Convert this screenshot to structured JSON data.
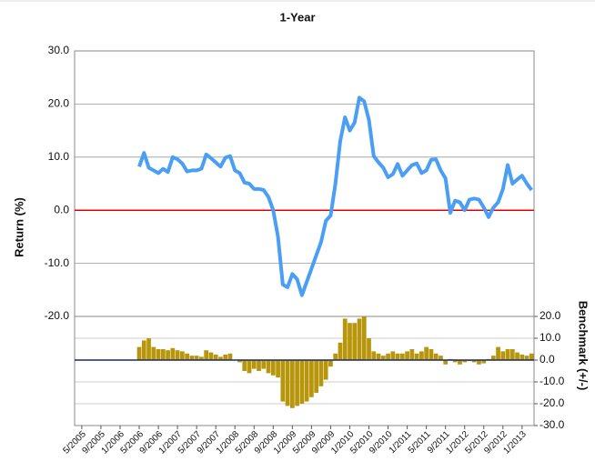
{
  "chart_data": {
    "type": "line-bar",
    "title": "1-Year",
    "ylabel": "Return (%)",
    "y2label": "Benchmark (+/-)",
    "categories": [
      null,
      "5/2005",
      null,
      null,
      null,
      "9/2005",
      null,
      null,
      null,
      "1/2006",
      null,
      null,
      null,
      "5/2006",
      null,
      null,
      null,
      "9/2006",
      null,
      null,
      null,
      "1/2007",
      null,
      null,
      null,
      "5/2007",
      null,
      null,
      null,
      "9/2007",
      null,
      null,
      null,
      "1/2008",
      null,
      null,
      null,
      "5/2008",
      null,
      null,
      null,
      "9/2008",
      null,
      null,
      null,
      "1/2009",
      null,
      null,
      null,
      "5/2009",
      null,
      null,
      null,
      "9/2009",
      null,
      null,
      null,
      "1/2010",
      null,
      null,
      null,
      "5/2010",
      null,
      null,
      null,
      "9/2010",
      null,
      null,
      null,
      "1/2011",
      null,
      null,
      null,
      "5/2011",
      null,
      null,
      null,
      "9/2011",
      null,
      null,
      null,
      "1/2012",
      null,
      null,
      null,
      "5/2012",
      null,
      null,
      null,
      "9/2012",
      null,
      null,
      null,
      "1/2013",
      null,
      null
    ],
    "series": [
      {
        "type": "line",
        "color": "#4a9ff5",
        "values": [
          null,
          null,
          null,
          null,
          null,
          null,
          null,
          null,
          null,
          null,
          null,
          null,
          null,
          8.2,
          10.8,
          8,
          7.5,
          7,
          7.8,
          7.2,
          10,
          9.6,
          8.8,
          7.3,
          7.5,
          7.5,
          7.8,
          10.5,
          9.8,
          9,
          8.2,
          9.9,
          10.2,
          7.5,
          7,
          5.2,
          5,
          4,
          4,
          3.8,
          2.5,
          0,
          -5,
          -14,
          -14.5,
          -12,
          -13,
          -16,
          -13.5,
          -11,
          -8.5,
          -6,
          -2,
          -1,
          5,
          13,
          17.5,
          15,
          16.5,
          21.2,
          20.5,
          17,
          10.2,
          9,
          8,
          6.2,
          6.8,
          8.7,
          6.5,
          7.5,
          8.5,
          8.8,
          7,
          7.5,
          9.5,
          9.6,
          7.5,
          6,
          -0.5,
          1.8,
          1.5,
          0,
          2,
          2.2,
          2,
          0.5,
          -1.3,
          0.5,
          1.5,
          4,
          8.5,
          5,
          5.8,
          6.5,
          5,
          3.8
        ]
      },
      {
        "type": "bar",
        "axis": "y2",
        "color": "#b8960c",
        "values": [
          null,
          null,
          null,
          null,
          null,
          null,
          null,
          null,
          null,
          null,
          null,
          null,
          null,
          6,
          9,
          10,
          6,
          5,
          5,
          4.5,
          5.5,
          4.5,
          4,
          3,
          2,
          2,
          1.5,
          4.5,
          3.5,
          2.5,
          1.5,
          2.5,
          3,
          0,
          -1,
          -5,
          -6,
          -4,
          -5,
          -4,
          -6,
          -7,
          -8,
          -19,
          -21,
          -22,
          -21,
          -20,
          -19,
          -17,
          -15,
          -12,
          -9,
          -3,
          3,
          8,
          19,
          17,
          17,
          19,
          20,
          10,
          4,
          3,
          2,
          3,
          4,
          3,
          3,
          4,
          5,
          3,
          4,
          6,
          5,
          3,
          2,
          -2,
          0.5,
          -1,
          -2,
          -1,
          -0.5,
          -1,
          -2,
          -1.5,
          0.5,
          2,
          6,
          4,
          5,
          5,
          3.5,
          2.5,
          2,
          3
        ]
      }
    ],
    "ylim": [
      -20,
      30
    ],
    "yticks": [
      {
        "value": -20,
        "label": "-20.0"
      },
      {
        "value": -10,
        "label": "-10.0"
      },
      {
        "value": 0,
        "label": "0.0"
      },
      {
        "value": 10,
        "label": "10.0"
      },
      {
        "value": 20,
        "label": "20.0"
      },
      {
        "value": 30,
        "label": "30.0"
      }
    ],
    "y2lim": [
      -30,
      20
    ],
    "y2ticks": [
      {
        "value": -30,
        "label": "-30.0"
      },
      {
        "value": -20,
        "label": "-20.0"
      },
      {
        "value": -10,
        "label": "-10.0"
      },
      {
        "value": 0,
        "label": "0.0"
      },
      {
        "value": 10,
        "label": "10.0"
      },
      {
        "value": 20,
        "label": "20.0"
      }
    ],
    "grid": true,
    "zero_line_color": "#e00000"
  }
}
